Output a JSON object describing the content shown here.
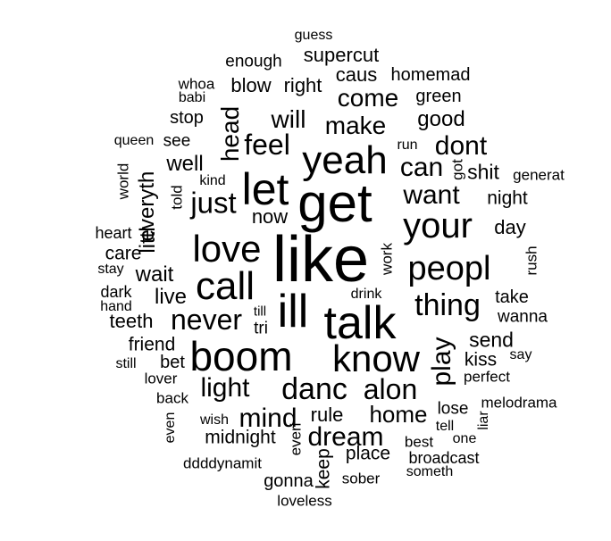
{
  "text_color": "#000000",
  "background": "#ffffff",
  "words": [
    {
      "text": "guess",
      "weight": 1
    },
    {
      "text": "supercut",
      "weight": 2
    },
    {
      "text": "enough",
      "weight": 1
    },
    {
      "text": "caus",
      "weight": 2
    },
    {
      "text": "homemad",
      "weight": 1
    },
    {
      "text": "whoa",
      "weight": 1
    },
    {
      "text": "blow",
      "weight": 2
    },
    {
      "text": "right",
      "weight": 2
    },
    {
      "text": "babi",
      "weight": 1
    },
    {
      "text": "come",
      "weight": 3
    },
    {
      "text": "green",
      "weight": 1
    },
    {
      "text": "stop",
      "weight": 1
    },
    {
      "text": "head",
      "weight": 3,
      "orientation": "vertical"
    },
    {
      "text": "will",
      "weight": 3
    },
    {
      "text": "make",
      "weight": 3
    },
    {
      "text": "good",
      "weight": 2
    },
    {
      "text": "queen",
      "weight": 1
    },
    {
      "text": "see",
      "weight": 1
    },
    {
      "text": "feel",
      "weight": 3
    },
    {
      "text": "yeah",
      "weight": 4
    },
    {
      "text": "run",
      "weight": 1
    },
    {
      "text": "dont",
      "weight": 3
    },
    {
      "text": "well",
      "weight": 2
    },
    {
      "text": "can",
      "weight": 3
    },
    {
      "text": "got",
      "weight": 1,
      "orientation": "vertical"
    },
    {
      "text": "shit",
      "weight": 2
    },
    {
      "text": "generat",
      "weight": 1
    },
    {
      "text": "world",
      "weight": 1,
      "orientation": "vertical"
    },
    {
      "text": "kind",
      "weight": 1
    },
    {
      "text": "let",
      "weight": 5
    },
    {
      "text": "get",
      "weight": 6
    },
    {
      "text": "everyth",
      "weight": 2,
      "orientation": "vertical"
    },
    {
      "text": "told",
      "weight": 1,
      "orientation": "vertical"
    },
    {
      "text": "just",
      "weight": 3
    },
    {
      "text": "want",
      "weight": 3
    },
    {
      "text": "night",
      "weight": 2
    },
    {
      "text": "now",
      "weight": 2
    },
    {
      "text": "your",
      "weight": 4
    },
    {
      "text": "heart",
      "weight": 1
    },
    {
      "text": "day",
      "weight": 2
    },
    {
      "text": "littl",
      "weight": 2,
      "orientation": "vertical"
    },
    {
      "text": "love",
      "weight": 4
    },
    {
      "text": "like",
      "weight": 7
    },
    {
      "text": "care",
      "weight": 2
    },
    {
      "text": "work",
      "weight": 1,
      "orientation": "vertical"
    },
    {
      "text": "rush",
      "weight": 1,
      "orientation": "vertical"
    },
    {
      "text": "stay",
      "weight": 1
    },
    {
      "text": "peopl",
      "weight": 4
    },
    {
      "text": "wait",
      "weight": 2
    },
    {
      "text": "call",
      "weight": 4
    },
    {
      "text": "dark",
      "weight": 1
    },
    {
      "text": "live",
      "weight": 2
    },
    {
      "text": "drink",
      "weight": 1
    },
    {
      "text": "take",
      "weight": 1
    },
    {
      "text": "ill",
      "weight": 5
    },
    {
      "text": "thing",
      "weight": 3
    },
    {
      "text": "hand",
      "weight": 1
    },
    {
      "text": "till",
      "weight": 1
    },
    {
      "text": "teeth",
      "weight": 2
    },
    {
      "text": "never",
      "weight": 3
    },
    {
      "text": "tri",
      "weight": 1
    },
    {
      "text": "talk",
      "weight": 5
    },
    {
      "text": "wanna",
      "weight": 1
    },
    {
      "text": "friend",
      "weight": 2
    },
    {
      "text": "send",
      "weight": 2
    },
    {
      "text": "play",
      "weight": 3,
      "orientation": "vertical"
    },
    {
      "text": "say",
      "weight": 1
    },
    {
      "text": "still",
      "weight": 1
    },
    {
      "text": "bet",
      "weight": 2
    },
    {
      "text": "boom",
      "weight": 4
    },
    {
      "text": "know",
      "weight": 4
    },
    {
      "text": "kiss",
      "weight": 2
    },
    {
      "text": "lover",
      "weight": 1
    },
    {
      "text": "perfect",
      "weight": 1
    },
    {
      "text": "light",
      "weight": 3
    },
    {
      "text": "danc",
      "weight": 3
    },
    {
      "text": "alon",
      "weight": 3
    },
    {
      "text": "back",
      "weight": 1
    },
    {
      "text": "melodrama",
      "weight": 1
    },
    {
      "text": "even",
      "weight": 1,
      "orientation": "vertical"
    },
    {
      "text": "home",
      "weight": 2
    },
    {
      "text": "lose",
      "weight": 2
    },
    {
      "text": "wish",
      "weight": 1
    },
    {
      "text": "mind",
      "weight": 3
    },
    {
      "text": "rule",
      "weight": 2
    },
    {
      "text": "liar",
      "weight": 1,
      "orientation": "vertical"
    },
    {
      "text": "tell",
      "weight": 1
    },
    {
      "text": "midnight",
      "weight": 2
    },
    {
      "text": "everi",
      "weight": 1,
      "orientation": "vertical"
    },
    {
      "text": "dream",
      "weight": 3
    },
    {
      "text": "best",
      "weight": 1
    },
    {
      "text": "one",
      "weight": 1
    },
    {
      "text": "place",
      "weight": 2
    },
    {
      "text": "broadcast",
      "weight": 1
    },
    {
      "text": "keep",
      "weight": 2,
      "orientation": "vertical"
    },
    {
      "text": "ddddynamit",
      "weight": 1
    },
    {
      "text": "someth",
      "weight": 1
    },
    {
      "text": "gonna",
      "weight": 2
    },
    {
      "text": "sober",
      "weight": 1
    },
    {
      "text": "loveless",
      "weight": 1
    }
  ]
}
